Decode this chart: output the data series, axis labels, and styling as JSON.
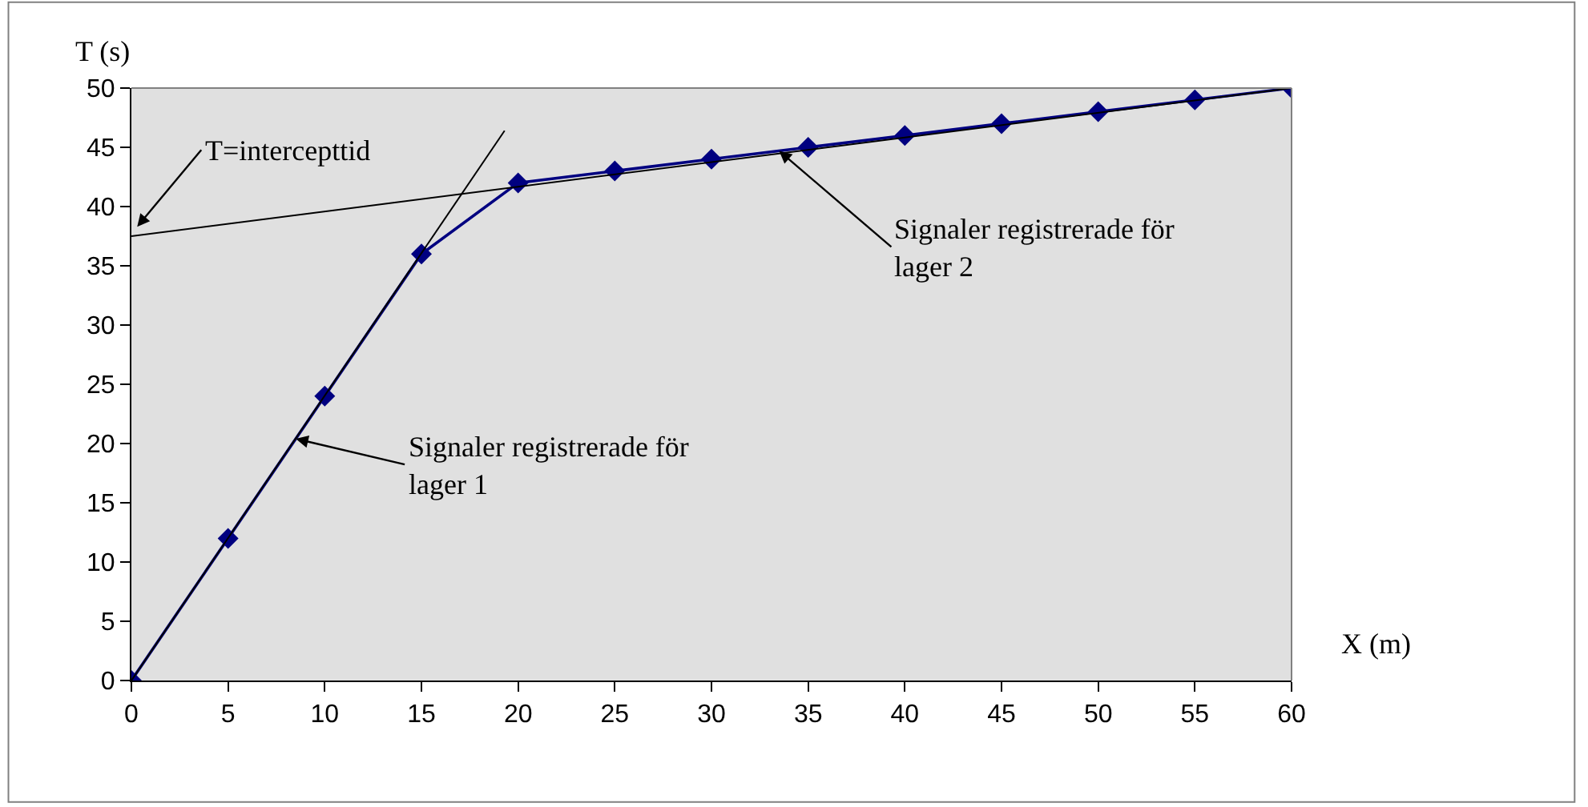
{
  "chart_data": {
    "type": "line",
    "xlabel": "X (m)",
    "ylabel": "T (s)",
    "xlim": [
      0,
      60
    ],
    "xticks": [
      0,
      5,
      10,
      15,
      20,
      25,
      30,
      35,
      40,
      45,
      50,
      55,
      60
    ],
    "ylim": [
      0,
      50
    ],
    "yticks": [
      0,
      5,
      10,
      15,
      20,
      25,
      30,
      35,
      40,
      45,
      50
    ],
    "grid": false,
    "marker": "diamond",
    "line_style": "solid",
    "series": [
      {
        "color": "#000080",
        "x": [
          0,
          5,
          10,
          15,
          20,
          25,
          30,
          35,
          40,
          45,
          50,
          55,
          60
        ],
        "values": [
          0,
          12,
          24,
          36,
          42,
          43,
          44,
          45,
          46,
          47,
          48,
          49,
          50
        ]
      },
      {
        "type": "line",
        "color": "#000000",
        "marker": "none",
        "x": [
          0,
          19.3
        ],
        "values": [
          0,
          46.4
        ]
      },
      {
        "type": "line",
        "color": "#000000",
        "marker": "none",
        "x": [
          0,
          60
        ],
        "values": [
          37.5,
          50
        ]
      }
    ],
    "annotations": [
      {
        "text": "T=intercepttid",
        "x": 0.3,
        "y": 38.3
      },
      {
        "text": "Signaler registrerade för\nlager 2",
        "x": 33.5,
        "y": 44.7
      },
      {
        "text": "Signaler registrerade för\nlager 1",
        "x": 8.5,
        "y": 20.4
      }
    ]
  }
}
